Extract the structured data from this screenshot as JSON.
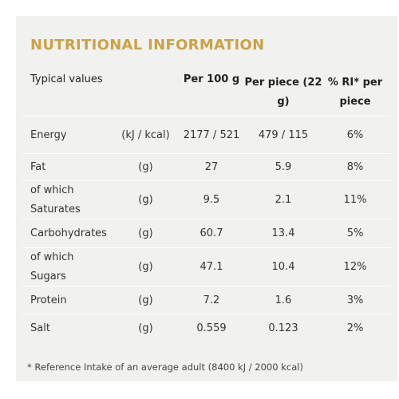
{
  "title": "NUTRITIONAL INFORMATION",
  "table": {
    "header": [
      "Typical values",
      "Per 100 g",
      "Per piece (22 g)",
      "% RI* per piece"
    ],
    "rows": [
      [
        "Energy",
        "(kJ / kcal)",
        "2177 / 521",
        "479 / 115",
        "6%"
      ],
      [
        "Fat",
        "(g)",
        "27",
        "5.9",
        "8%"
      ],
      [
        "of which Saturates",
        "(g)",
        "9.5",
        "2.1",
        "11%"
      ],
      [
        "Carbohydrates",
        "(g)",
        "60.7",
        "13.4",
        "5%"
      ],
      [
        "of which Sugars",
        "(g)",
        "47.1",
        "10.4",
        "12%"
      ],
      [
        "Protein",
        "(g)",
        "7.2",
        "1.6",
        "3%"
      ],
      [
        "Salt",
        "(g)",
        "0.559",
        "0.123",
        "2%"
      ]
    ]
  },
  "footnote": "* Reference Intake of an average adult (8400 kJ / 2000 kcal)"
}
